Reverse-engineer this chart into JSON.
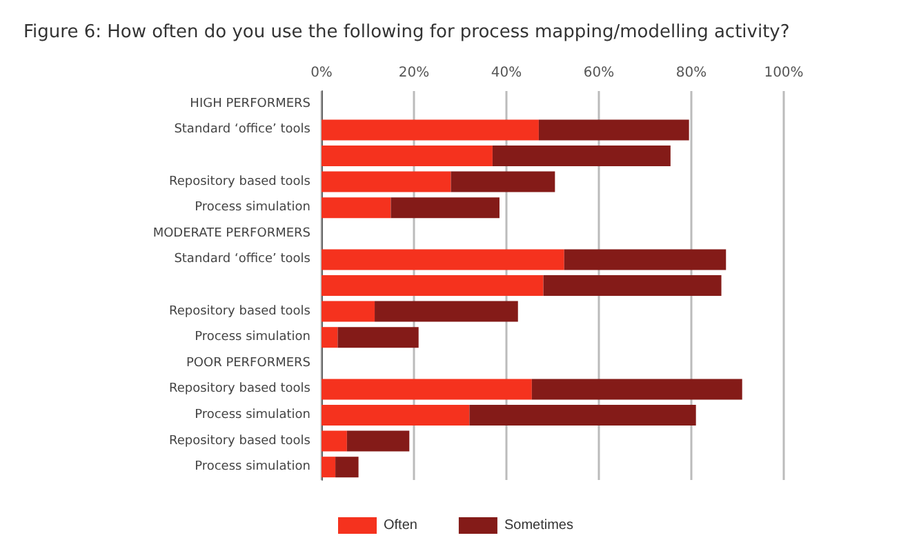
{
  "chart_data": {
    "type": "bar",
    "orientation": "horizontal",
    "stacked": true,
    "title": "Figure 6: How often do you use the following for process mapping/modelling activity?",
    "categories": [
      "HIGH PERFORMERS",
      "Standard ‘office’ tools",
      null,
      "Repository based tools",
      "Process simulation",
      "MODERATE PERFORMERS",
      "Standard ‘office’ tools",
      null,
      "Repository based tools",
      "Process simulation",
      "POOR PERFORMERS",
      "Repository based tools",
      "Process simulation",
      "Repository based tools",
      "Process simulation"
    ],
    "series": [
      {
        "name": "Often",
        "color": "#f5321e",
        "values": [
          null,
          47,
          37,
          28,
          15,
          null,
          52.5,
          48,
          11.5,
          3.5,
          null,
          45.5,
          32,
          5.5,
          3
        ]
      },
      {
        "name": "Sometimes",
        "color": "#841b18",
        "values": [
          null,
          32.5,
          38.5,
          22.5,
          23.5,
          null,
          35,
          38.5,
          31,
          17.5,
          null,
          45.5,
          49,
          13.5,
          5
        ]
      }
    ],
    "xlim": [
      0,
      100
    ],
    "xticks": [
      {
        "value": 0,
        "label": "0%"
      },
      {
        "value": 20,
        "label": "20%"
      },
      {
        "value": 40,
        "label": "40%"
      },
      {
        "value": 60,
        "label": "60%"
      },
      {
        "value": 80,
        "label": "80%"
      },
      {
        "value": 100,
        "label": "100%"
      }
    ],
    "grid": "x",
    "legend": "bottom"
  }
}
